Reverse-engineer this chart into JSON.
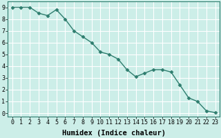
{
  "x": [
    0,
    1,
    2,
    3,
    4,
    5,
    6,
    7,
    8,
    9,
    10,
    11,
    12,
    13,
    14,
    15,
    16,
    17,
    18,
    19,
    20,
    21,
    22,
    23
  ],
  "y": [
    9.0,
    9.0,
    9.0,
    8.5,
    8.3,
    8.8,
    8.0,
    7.0,
    6.5,
    6.0,
    5.2,
    5.0,
    4.6,
    3.7,
    3.1,
    3.4,
    3.7,
    3.7,
    3.5,
    2.4,
    1.3,
    1.0,
    0.2,
    0.05
  ],
  "line_color": "#2e7d6e",
  "marker": "D",
  "marker_size": 2.5,
  "bg_color": "#cceee8",
  "grid_color": "#ffffff",
  "xlabel": "Humidex (Indice chaleur)",
  "xlim": [
    -0.5,
    23.5
  ],
  "ylim": [
    -0.3,
    9.5
  ],
  "xtick_labels": [
    "0",
    "1",
    "2",
    "3",
    "4",
    "5",
    "6",
    "7",
    "8",
    "9",
    "10",
    "11",
    "12",
    "13",
    "14",
    "15",
    "16",
    "17",
    "18",
    "19",
    "20",
    "21",
    "22",
    "23"
  ],
  "ytick_positions": [
    0,
    1,
    2,
    3,
    4,
    5,
    6,
    7,
    8,
    9
  ],
  "ytick_labels": [
    "0",
    "1",
    "2",
    "3",
    "4",
    "5",
    "6",
    "7",
    "8",
    "9"
  ],
  "tick_fontsize": 6.0,
  "xlabel_fontsize": 7.5,
  "line_width": 1.0,
  "spine_color": "#2e7d6e"
}
